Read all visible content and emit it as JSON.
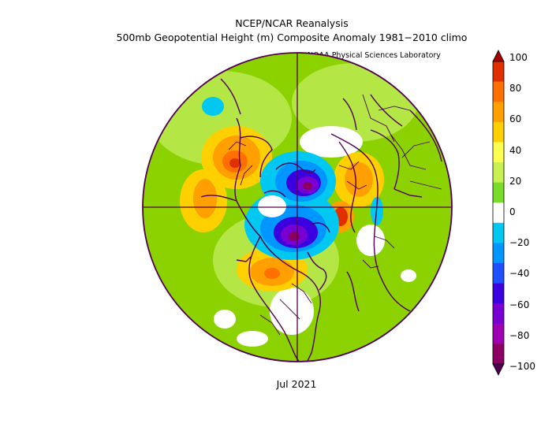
{
  "header": {
    "title": "NCEP/NCAR Reanalysis",
    "subtitle": "500mb Geopotential Height (m) Composite Anomaly 1981−2010 climo",
    "credit": "NOAA Physical Sciences Laboratory"
  },
  "footer": {
    "date": "Jul 2021"
  },
  "colorbar": {
    "labels": [
      "100",
      "80",
      "60",
      "40",
      "20",
      "0",
      "−20",
      "−40",
      "−60",
      "−80",
      "−100"
    ],
    "colors": [
      "#a50000",
      "#e03000",
      "#ff7000",
      "#ffa000",
      "#ffd000",
      "#ffff50",
      "#c8f050",
      "#78dc28",
      "#ffffff",
      "#00c8f0",
      "#0096ff",
      "#1e50ff",
      "#3c00e0",
      "#7800d2",
      "#a000b4",
      "#8c0064",
      "#500050"
    ]
  },
  "map": {
    "projection": "polar-stereographic",
    "ocean_color": "#8cd200",
    "boundary_color": "#500050"
  }
}
